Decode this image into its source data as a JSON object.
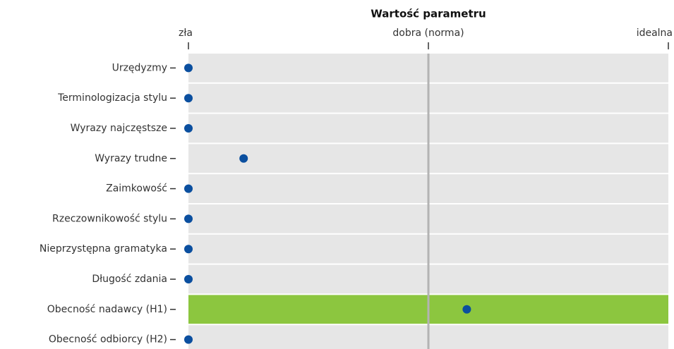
{
  "chart_data": {
    "type": "dot",
    "title": "Wartość parametru",
    "categories": [
      "Urzędyzmy",
      "Terminologizacja stylu",
      "Wyrazy najczęstsze",
      "Wyrazy trudne",
      "Zaimkowość",
      "Rzeczownikowość stylu",
      "Nieprzystępna gramatyka",
      "Długość zdania",
      "Obecność nadawcy (H1)",
      "Obecność odbiorcy (H2)"
    ],
    "values": [
      0,
      0,
      0,
      0.23,
      0,
      0,
      0,
      0,
      1.16,
      0
    ],
    "color": "#0b4f9f",
    "xlim": [
      0,
      2
    ],
    "xticks": [
      {
        "value": 0,
        "label": "zła"
      },
      {
        "value": 1,
        "label": "dobra (norma)"
      },
      {
        "value": 2,
        "label": "idealna"
      }
    ],
    "reference_line": 1,
    "band_color": "#e6e6e6",
    "highlight_category": "Obecność nadawcy (H1)",
    "highlight_color": "#8cc63f"
  }
}
